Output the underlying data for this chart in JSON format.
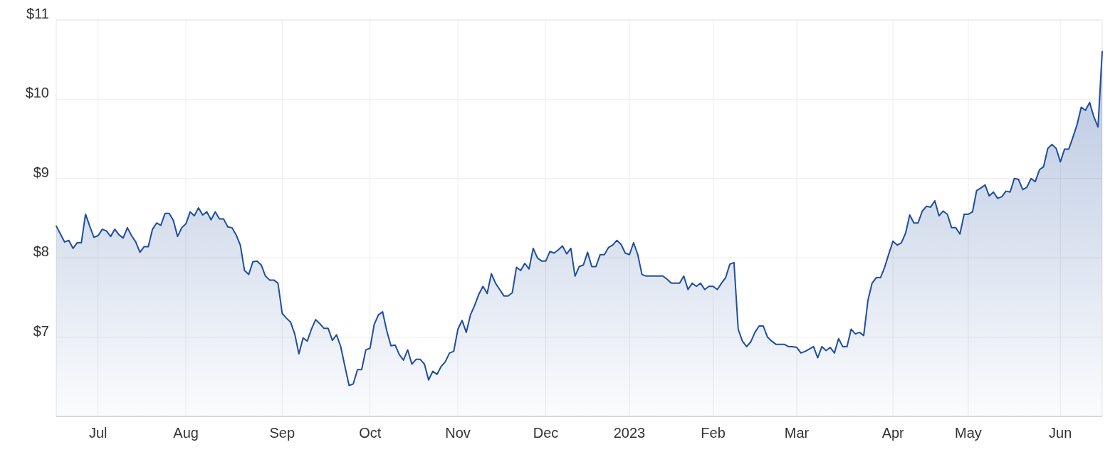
{
  "chart_data": {
    "type": "area",
    "color": "#1f4e9e",
    "categories": [
      null,
      null,
      null,
      null,
      null,
      null,
      null,
      null,
      null,
      null,
      "Jul",
      null,
      null,
      null,
      null,
      null,
      null,
      null,
      null,
      null,
      null,
      null,
      null,
      null,
      null,
      null,
      null,
      null,
      null,
      null,
      null,
      "Aug",
      null,
      null,
      null,
      null,
      null,
      null,
      null,
      null,
      null,
      null,
      null,
      null,
      null,
      null,
      null,
      null,
      null,
      null,
      null,
      null,
      null,
      null,
      "Sep",
      null,
      null,
      null,
      null,
      null,
      null,
      null,
      null,
      null,
      null,
      null,
      null,
      null,
      null,
      null,
      null,
      null,
      null,
      null,
      null,
      "Oct",
      null,
      null,
      null,
      null,
      null,
      null,
      null,
      null,
      null,
      null,
      null,
      null,
      null,
      null,
      null,
      null,
      null,
      null,
      null,
      null,
      "Nov",
      null,
      null,
      null,
      null,
      null,
      null,
      null,
      null,
      null,
      null,
      null,
      null,
      null,
      null,
      null,
      null,
      null,
      null,
      null,
      null,
      "Dec",
      null,
      null,
      null,
      null,
      null,
      null,
      null,
      null,
      null,
      null,
      null,
      null,
      null,
      null,
      null,
      null,
      null,
      null,
      null,
      "2023",
      null,
      null,
      null,
      null,
      null,
      null,
      null,
      null,
      null,
      null,
      null,
      null,
      null,
      null,
      null,
      null,
      null,
      null,
      null,
      "Feb",
      null,
      null,
      null,
      null,
      null,
      null,
      null,
      null,
      null,
      null,
      null,
      null,
      null,
      null,
      null,
      null,
      null,
      null,
      null,
      "Mar",
      null,
      null,
      null,
      null,
      null,
      null,
      null,
      null,
      null,
      null,
      null,
      null,
      null,
      null,
      null,
      null,
      null,
      null,
      null,
      null,
      null,
      null,
      "Apr",
      null,
      null,
      null,
      null,
      null,
      null,
      null,
      null,
      null,
      null,
      null,
      null,
      null,
      null,
      null,
      null,
      null,
      "May",
      null,
      null,
      null,
      null,
      null,
      null,
      null,
      null,
      null,
      null,
      null,
      null,
      null,
      null,
      null,
      null,
      null,
      null,
      null,
      null,
      null,
      "Jun",
      null,
      null,
      null,
      null,
      null,
      null,
      null,
      null,
      null,
      null
    ],
    "values": [
      8.4,
      8.3,
      8.2,
      8.22,
      8.12,
      8.19,
      8.19,
      8.55,
      8.4,
      8.26,
      8.28,
      8.36,
      8.34,
      8.27,
      8.36,
      8.29,
      8.25,
      8.38,
      8.28,
      8.2,
      8.07,
      8.14,
      8.14,
      8.36,
      8.44,
      8.41,
      8.56,
      8.56,
      8.47,
      8.27,
      8.38,
      8.43,
      8.58,
      8.53,
      8.63,
      8.54,
      8.58,
      8.48,
      8.58,
      8.49,
      8.49,
      8.39,
      8.38,
      8.29,
      8.16,
      7.84,
      7.79,
      7.95,
      7.96,
      7.91,
      7.77,
      7.72,
      7.72,
      7.68,
      7.3,
      7.24,
      7.19,
      7.04,
      6.79,
      6.99,
      6.95,
      7.1,
      7.22,
      7.17,
      7.11,
      7.11,
      6.96,
      7.03,
      6.88,
      6.63,
      6.39,
      6.41,
      6.59,
      6.59,
      6.84,
      6.86,
      7.16,
      7.28,
      7.32,
      7.08,
      6.89,
      6.9,
      6.78,
      6.71,
      6.84,
      6.66,
      6.72,
      6.72,
      6.66,
      6.46,
      6.57,
      6.53,
      6.63,
      6.69,
      6.8,
      6.82,
      7.1,
      7.21,
      7.06,
      7.28,
      7.4,
      7.54,
      7.64,
      7.55,
      7.8,
      7.68,
      7.6,
      7.52,
      7.52,
      7.56,
      7.88,
      7.84,
      7.93,
      7.86,
      8.12,
      8.0,
      7.96,
      7.96,
      8.08,
      8.06,
      8.1,
      8.15,
      8.05,
      8.12,
      7.77,
      7.89,
      7.91,
      8.07,
      7.89,
      7.89,
      8.04,
      8.04,
      8.13,
      8.16,
      8.22,
      8.17,
      8.06,
      8.04,
      8.19,
      8.04,
      7.79,
      7.77,
      7.77,
      7.77,
      7.77,
      7.77,
      7.73,
      7.68,
      7.68,
      7.68,
      7.77,
      7.6,
      7.68,
      7.64,
      7.68,
      7.6,
      7.64,
      7.64,
      7.6,
      7.68,
      7.75,
      7.92,
      7.94,
      7.1,
      6.95,
      6.88,
      6.94,
      7.06,
      7.14,
      7.14,
      7.0,
      6.95,
      6.91,
      6.91,
      6.91,
      6.88,
      6.88,
      6.87,
      6.8,
      6.82,
      6.85,
      6.88,
      6.74,
      6.88,
      6.83,
      6.87,
      6.8,
      6.98,
      6.88,
      6.88,
      7.1,
      7.04,
      7.06,
      7.02,
      7.46,
      7.68,
      7.75,
      7.75,
      7.88,
      8.05,
      8.21,
      8.16,
      8.19,
      8.31,
      8.54,
      8.44,
      8.44,
      8.59,
      8.65,
      8.64,
      8.72,
      8.53,
      8.59,
      8.55,
      8.38,
      8.38,
      8.3,
      8.55,
      8.55,
      8.58,
      8.85,
      8.88,
      8.92,
      8.78,
      8.83,
      8.75,
      8.77,
      8.84,
      8.83,
      9.0,
      8.99,
      8.86,
      8.89,
      9.0,
      8.96,
      9.11,
      9.15,
      9.38,
      9.43,
      9.38,
      9.21,
      9.37,
      9.37,
      9.52,
      9.68,
      9.9,
      9.86,
      9.96,
      9.78,
      9.65,
      10.6
    ],
    "ylim": [
      6,
      11
    ],
    "yticks": [
      {
        "value": 7,
        "label": "$7"
      },
      {
        "value": 8,
        "label": "$8"
      },
      {
        "value": 9,
        "label": "$9"
      },
      {
        "value": 10,
        "label": "$10"
      },
      {
        "value": 11,
        "label": "$11"
      }
    ],
    "grid": true
  }
}
